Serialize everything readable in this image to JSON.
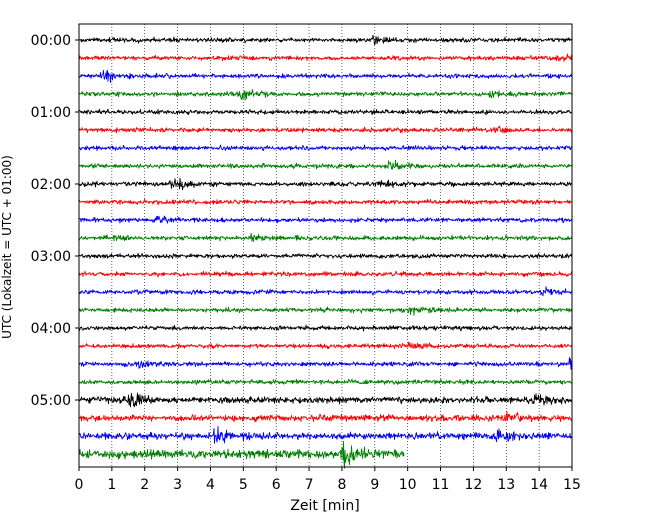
{
  "chart_data": {
    "type": "line",
    "title": "",
    "xlabel": "Zeit  [min]",
    "ylabel": "UTC (Lokalzeit = UTC + 01:00)",
    "xlim": [
      0,
      15
    ],
    "x_ticks": [
      "0",
      "1",
      "2",
      "3",
      "4",
      "5",
      "6",
      "7",
      "8",
      "9",
      "10",
      "11",
      "12",
      "13",
      "14",
      "15"
    ],
    "y_ticks": [
      "00:00",
      "01:00",
      "02:00",
      "03:00",
      "04:00",
      "05:00"
    ],
    "trace_interval_min": 15,
    "trace_count": 24,
    "last_trace_end_min": 9.9,
    "trace_colors": [
      "#000000",
      "#ff0000",
      "#0000ff",
      "#008000"
    ],
    "grid": "vertical-dotted",
    "events": [
      {
        "trace": 0,
        "minute": 8.9,
        "amp": 1.8
      },
      {
        "trace": 1,
        "minute": 14.5,
        "amp": 1.6
      },
      {
        "trace": 2,
        "minute": 0.7,
        "amp": 2.8
      },
      {
        "trace": 3,
        "minute": 4.9,
        "amp": 2.2
      },
      {
        "trace": 3,
        "minute": 12.5,
        "amp": 1.5
      },
      {
        "trace": 5,
        "minute": 12.6,
        "amp": 1.8
      },
      {
        "trace": 7,
        "minute": 9.4,
        "amp": 2.2
      },
      {
        "trace": 8,
        "minute": 2.8,
        "amp": 3.0
      },
      {
        "trace": 8,
        "minute": 9.1,
        "amp": 1.6
      },
      {
        "trace": 10,
        "minute": 2.3,
        "amp": 1.8
      },
      {
        "trace": 11,
        "minute": 0.9,
        "amp": 1.7
      },
      {
        "trace": 11,
        "minute": 5.2,
        "amp": 1.4
      },
      {
        "trace": 14,
        "minute": 14.1,
        "amp": 1.5
      },
      {
        "trace": 15,
        "minute": 10.0,
        "amp": 1.5
      },
      {
        "trace": 17,
        "minute": 10.0,
        "amp": 1.4
      },
      {
        "trace": 18,
        "minute": 1.8,
        "amp": 1.6
      },
      {
        "trace": 18,
        "minute": 14.9,
        "amp": 3.2
      },
      {
        "trace": 20,
        "minute": 1.5,
        "amp": 3.0
      },
      {
        "trace": 20,
        "minute": 13.8,
        "amp": 2.4
      },
      {
        "trace": 21,
        "minute": 13.0,
        "amp": 2.0
      },
      {
        "trace": 22,
        "minute": 4.1,
        "amp": 2.5
      },
      {
        "trace": 22,
        "minute": 12.7,
        "amp": 3.0
      },
      {
        "trace": 23,
        "minute": 8.0,
        "amp": 3.2
      }
    ]
  }
}
